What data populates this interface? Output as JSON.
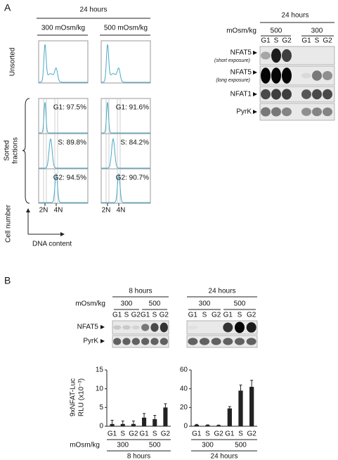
{
  "panel_a": {
    "label": "A",
    "flow": {
      "time": "24 hours",
      "columns": [
        "300 mOsm/kg",
        "500 mOsm/kg"
      ],
      "unsorted_label": "Unsorted",
      "sorted_label": [
        "Sorted",
        "fractions"
      ],
      "percentages": [
        [
          "G1: 97.5%",
          "G1: 91.6%"
        ],
        [
          "S: 89.8%",
          "S: 84.2%"
        ],
        [
          "G2: 94.5%",
          "G2: 90.7%"
        ]
      ],
      "x_marks": [
        "2N",
        "4N"
      ],
      "y_axis": "Cell number",
      "x_axis": "DNA content"
    },
    "blot": {
      "time": "24 hours",
      "osm_label": "mOsm/kg",
      "groups": [
        "500",
        "300"
      ],
      "lanes": [
        "G1",
        "S",
        "G2"
      ],
      "rows": [
        {
          "name": "NFAT5",
          "note": "(short exposure)"
        },
        {
          "name": "NFAT5",
          "note": "(long exposure)"
        },
        {
          "name": "NFAT1"
        },
        {
          "name": "PyrK"
        }
      ]
    }
  },
  "panel_b": {
    "label": "B",
    "osm_label": "mOsm/kg",
    "lanes": [
      "G1",
      "S",
      "G2"
    ],
    "rows": [
      "NFAT5",
      "PyrK"
    ],
    "blots": [
      {
        "time": "8 hours",
        "groups": [
          "300",
          "500"
        ]
      },
      {
        "time": "24 hours",
        "groups": [
          "300",
          "500"
        ]
      }
    ],
    "y_label": [
      "9xNFAT-Luc",
      "RLU (x10⁻³)"
    ]
  },
  "chart_data": [
    {
      "type": "bar",
      "time": "8 hours",
      "group_title": "mOsm/kg",
      "groups": [
        "300",
        "500"
      ],
      "categories": [
        "G1",
        "S",
        "G2",
        "G1",
        "S",
        "G2"
      ],
      "values": [
        0.6,
        0.6,
        0.6,
        2.3,
        1.9,
        5.0
      ],
      "errors": [
        1.0,
        0.8,
        0.8,
        1.1,
        1.0,
        1.0
      ],
      "color": "#222222",
      "ylim": [
        0,
        15
      ],
      "yticks": [
        0,
        5,
        10,
        15
      ]
    },
    {
      "type": "bar",
      "time": "24 hours",
      "group_title": "mOsm/kg",
      "groups": [
        "300",
        "500"
      ],
      "categories": [
        "G1",
        "S",
        "G2",
        "G1",
        "S",
        "G2"
      ],
      "values": [
        1.5,
        1.2,
        1.0,
        19,
        38,
        42
      ],
      "errors": [
        0.5,
        0.3,
        0.3,
        2,
        6,
        7
      ],
      "color": "#222222",
      "ylim": [
        0,
        60
      ],
      "yticks": [
        0,
        20,
        40,
        60
      ]
    }
  ]
}
